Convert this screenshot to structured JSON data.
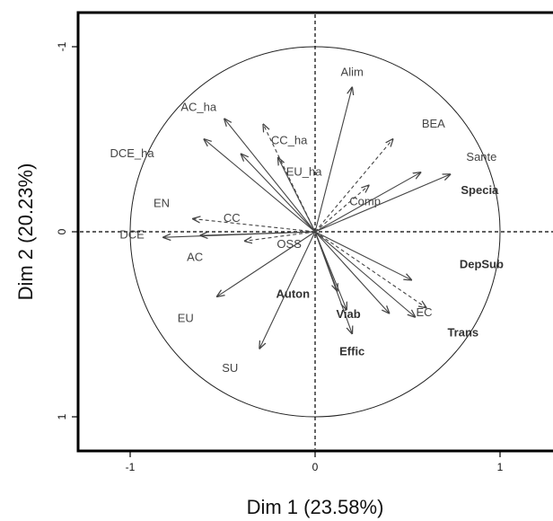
{
  "chart_data": {
    "type": "scatter",
    "title": "",
    "xlabel": "Dim 1 (23.58%)",
    "ylabel": "Dim 2 (20.23%)",
    "xlim": [
      -1.25,
      1.25
    ],
    "ylim": [
      -1.2,
      1.2
    ],
    "y_axis_reversed": true,
    "x_ticks": [
      {
        "value": -1,
        "label": "-1"
      },
      {
        "value": 0,
        "label": "0"
      },
      {
        "value": 1,
        "label": "1"
      }
    ],
    "y_ticks": [
      {
        "value": -1,
        "label": "-1"
      },
      {
        "value": 0,
        "label": "0"
      },
      {
        "value": 1,
        "label": "1"
      }
    ],
    "correlation_circle": true,
    "reference_lines": "dashed lines at x=0 and y=0",
    "variables": [
      {
        "name": "Alim",
        "x": 0.2,
        "y": -0.78,
        "line": "solid",
        "label_x": 0.2,
        "label_y": -0.86,
        "bold": false
      },
      {
        "name": "BEA",
        "x": 0.42,
        "y": -0.5,
        "line": "dashed",
        "label_x": 0.64,
        "label_y": -0.58,
        "bold": false
      },
      {
        "name": "Sante",
        "x": 0.73,
        "y": -0.31,
        "line": "solid",
        "label_x": 0.9,
        "label_y": -0.4,
        "bold": false
      },
      {
        "name": "Specia",
        "x": 0.57,
        "y": -0.32,
        "line": "solid",
        "label_x": 0.89,
        "label_y": -0.22,
        "bold": true
      },
      {
        "name": "Comp",
        "x": 0.29,
        "y": -0.25,
        "line": "dashed",
        "label_x": 0.27,
        "label_y": -0.16,
        "bold": false
      },
      {
        "name": "DepSub",
        "x": 0.52,
        "y": 0.26,
        "line": "solid",
        "label_x": 0.9,
        "label_y": 0.18,
        "bold": true
      },
      {
        "name": "EC",
        "x": 0.6,
        "y": 0.41,
        "line": "dashed",
        "label_x": 0.59,
        "label_y": 0.44,
        "bold": false
      },
      {
        "name": "Trans",
        "x": 0.54,
        "y": 0.46,
        "line": "solid",
        "label_x": 0.8,
        "label_y": 0.55,
        "bold": true
      },
      {
        "name": "",
        "x": 0.4,
        "y": 0.44,
        "line": "solid",
        "label_x": 0,
        "label_y": 0,
        "bold": false
      },
      {
        "name": "Viab",
        "x": 0.17,
        "y": 0.42,
        "line": "solid",
        "label_x": 0.18,
        "label_y": 0.45,
        "bold": true
      },
      {
        "name": "Effic",
        "x": 0.2,
        "y": 0.55,
        "line": "solid",
        "label_x": 0.2,
        "label_y": 0.65,
        "bold": true
      },
      {
        "name": "Auton",
        "x": 0.12,
        "y": 0.32,
        "line": "solid",
        "label_x": -0.12,
        "label_y": 0.34,
        "bold": true
      },
      {
        "name": "OSS",
        "x": -0.38,
        "y": 0.05,
        "line": "dashed",
        "label_x": -0.14,
        "label_y": 0.07,
        "bold": false
      },
      {
        "name": "CC",
        "x": -0.66,
        "y": -0.07,
        "line": "dashed",
        "label_x": -0.45,
        "label_y": -0.07,
        "bold": false
      },
      {
        "name": "AC",
        "x": -0.62,
        "y": 0.02,
        "line": "solid",
        "label_x": -0.65,
        "label_y": 0.14,
        "bold": false
      },
      {
        "name": "DCE",
        "x": -0.82,
        "y": 0.03,
        "line": "solid",
        "label_x": -0.99,
        "label_y": 0.02,
        "bold": false
      },
      {
        "name": "AC_ha",
        "x": -0.49,
        "y": -0.61,
        "line": "solid",
        "label_x": -0.63,
        "label_y": -0.67,
        "bold": false
      },
      {
        "name": "CC_ha",
        "x": -0.28,
        "y": -0.58,
        "line": "dashed",
        "label_x": -0.14,
        "label_y": -0.49,
        "bold": false
      },
      {
        "name": "EU_ha",
        "x": -0.2,
        "y": -0.4,
        "line": "solid",
        "label_x": -0.06,
        "label_y": -0.32,
        "bold": false
      },
      {
        "name": "DCE_ha",
        "x": -0.6,
        "y": -0.5,
        "line": "solid",
        "label_x": -0.99,
        "label_y": -0.42,
        "bold": false
      },
      {
        "name": "EN",
        "x": -0.4,
        "y": -0.42,
        "line": "solid",
        "label_x": -0.83,
        "label_y": -0.15,
        "bold": false
      },
      {
        "name": "EU",
        "x": -0.53,
        "y": 0.35,
        "line": "solid",
        "label_x": -0.7,
        "label_y": 0.47,
        "bold": false
      },
      {
        "name": "SU",
        "x": -0.3,
        "y": 0.63,
        "line": "solid",
        "label_x": -0.46,
        "label_y": 0.74,
        "bold": false
      }
    ]
  }
}
